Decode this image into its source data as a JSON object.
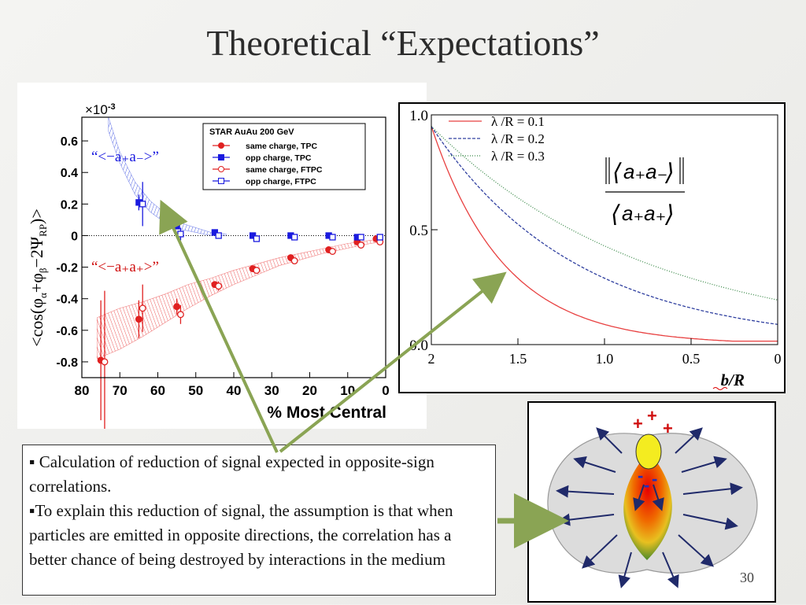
{
  "slide": {
    "title": "Theoretical “Expectations”",
    "page_number": "30",
    "bullets": [
      "▪ Calculation of reduction of signal expected in opposite-sign correlations.",
      "▪To explain this reduction of signal, the assumption is that when particles are emitted in opposite directions, the correlation has a better chance of being destroyed by interactions in the medium"
    ]
  },
  "illustration": {
    "plus_signs": [
      "+",
      "+",
      "+"
    ],
    "minus_signs": [
      "-",
      "-",
      "-"
    ]
  },
  "chart_data": [
    {
      "type": "scatter",
      "exponent_label": "×10",
      "exponent_sup": "-3",
      "xlabel": "% Most Central",
      "ylabel_parts": {
        "a": "<cos(φ",
        "sub1": "α",
        "b": "+φ",
        "sub2": "β",
        "c": "−2Ψ",
        "sub3": "RP",
        "d": ")>"
      },
      "xlim": [
        80,
        0
      ],
      "ylim": [
        -0.9,
        0.75
      ],
      "xticks": [
        80,
        70,
        60,
        50,
        40,
        30,
        20,
        10,
        0
      ],
      "yticks": [
        0.6,
        0.4,
        0.2,
        0,
        -0.2,
        -0.4,
        -0.6,
        -0.8
      ],
      "ytick_labels": [
        "0.6",
        "0.4",
        "0.2",
        "0",
        "-0.2",
        "-0.4",
        "-0.6",
        "-0.8"
      ],
      "legend": {
        "title": "STAR  AuAu 200 GeV",
        "entries": [
          {
            "label": "same charge, TPC",
            "color": "#e02020",
            "marker": "circle-filled"
          },
          {
            "label": "opp charge, TPC",
            "color": "#1a1adf",
            "marker": "square-filled"
          },
          {
            "label": "same charge, FTPC",
            "color": "#e02020",
            "marker": "circle-open"
          },
          {
            "label": "opp charge, FTPC",
            "color": "#1a1adf",
            "marker": "square-open"
          }
        ]
      },
      "annotations": {
        "opp": "“<−a₊a₋>”",
        "same": "“<−a₊a₊>”"
      },
      "series": [
        {
          "name": "same charge, TPC",
          "x": [
            75,
            65,
            55,
            45,
            35,
            25,
            15,
            7.5,
            2.5
          ],
          "y": [
            -0.79,
            -0.53,
            -0.45,
            -0.31,
            -0.21,
            -0.14,
            -0.09,
            -0.04,
            -0.02
          ],
          "err": [
            0.38,
            0.12,
            0.05,
            0.02,
            0.01,
            0.01,
            0.01,
            0.01,
            0.01
          ]
        },
        {
          "name": "opp charge, TPC",
          "x": [
            65,
            55,
            45,
            35,
            25,
            15,
            7.5
          ],
          "y": [
            0.21,
            0.06,
            0.02,
            0.0,
            0.0,
            0.0,
            -0.01
          ],
          "err": [
            0.05,
            0.02,
            0.01,
            0.01,
            0.01,
            0.01,
            0.01
          ]
        },
        {
          "name": "same charge, FTPC",
          "x": [
            74,
            64,
            54,
            44,
            34,
            24,
            14,
            6.5,
            1.5
          ],
          "y": [
            -0.8,
            -0.46,
            -0.5,
            -0.32,
            -0.22,
            -0.16,
            -0.1,
            -0.06,
            -0.04
          ],
          "err": [
            0.45,
            0.15,
            0.06,
            0.03,
            0.02,
            0.01,
            0.01,
            0.01,
            0.01
          ]
        },
        {
          "name": "opp charge, FTPC",
          "x": [
            64,
            54,
            44,
            34,
            24,
            14,
            6.5,
            1.5
          ],
          "y": [
            0.2,
            0.01,
            0.0,
            -0.02,
            -0.01,
            -0.01,
            -0.01,
            -0.01
          ],
          "err": [
            0.14,
            0.04,
            0.01,
            0.01,
            0.01,
            0.01,
            0.01,
            0.01
          ]
        }
      ],
      "bands": [
        {
          "name": "opp",
          "color": "#3a4fe0",
          "x": [
            73,
            70,
            66,
            62,
            58,
            54,
            50,
            46,
            42
          ],
          "upper": [
            0.75,
            0.53,
            0.34,
            0.22,
            0.14,
            0.08,
            0.05,
            0.02,
            0.01
          ],
          "lower": [
            0.66,
            0.46,
            0.26,
            0.15,
            0.08,
            0.04,
            0.02,
            0.0,
            0.0
          ]
        },
        {
          "name": "same",
          "color": "#e83030",
          "x": [
            76,
            70,
            64,
            58,
            52,
            46,
            40,
            34,
            28,
            22,
            16,
            10,
            4,
            1
          ],
          "upper": [
            -0.52,
            -0.46,
            -0.42,
            -0.37,
            -0.31,
            -0.27,
            -0.22,
            -0.18,
            -0.14,
            -0.11,
            -0.08,
            -0.05,
            -0.03,
            -0.02
          ],
          "lower": [
            -0.78,
            -0.72,
            -0.64,
            -0.55,
            -0.46,
            -0.38,
            -0.31,
            -0.25,
            -0.19,
            -0.15,
            -0.11,
            -0.08,
            -0.05,
            -0.04
          ]
        }
      ]
    },
    {
      "type": "line",
      "xlabel": "b/R",
      "xlim": [
        2,
        0
      ],
      "ylim": [
        0,
        1
      ],
      "xticks": [
        2,
        1.5,
        1.0,
        0.5,
        0
      ],
      "xtick_labels": [
        "2",
        "1.5",
        "1.0",
        "0.5",
        "0"
      ],
      "yticks": [
        1.0,
        0.5,
        0.0
      ],
      "ytick_labels": [
        "1.0",
        "0.5",
        "0.0"
      ],
      "formula": {
        "num": "a₊a₋",
        "den": "a₊a₊"
      },
      "series": [
        {
          "name": "λ /R = 0.1",
          "color": "#e84040",
          "dash": "",
          "lambda": 0.1
        },
        {
          "name": "λ /R = 0.2",
          "color": "#3040a0",
          "dash": "4,2",
          "lambda": 0.2
        },
        {
          "name": "λ /R = 0.3",
          "color": "#3c8a4a",
          "dash": "1,2",
          "lambda": 0.3
        }
      ]
    }
  ]
}
